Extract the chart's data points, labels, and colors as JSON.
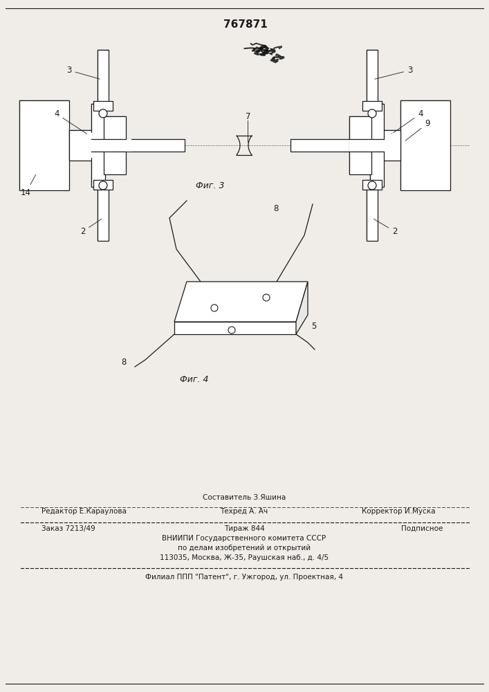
{
  "patent_number": "767871",
  "fig3_label": "Фиг. 3",
  "fig4_label": "Фиг. 4",
  "bg_color": "#f0ede8",
  "line_color": "#1a1a1a",
  "labels": {
    "2_left": "2",
    "2_right": "2",
    "3_left": "3",
    "3_right": "3",
    "4_left": "4",
    "4_right": "4",
    "7": "7",
    "9": "9",
    "14": "14",
    "5": "5",
    "8_left": "8",
    "8_right": "8"
  },
  "footer": {
    "line1_center": "Составитель З.Яшина",
    "line2_left": "Редактор Е.Карауловa",
    "line2_center": "Техред А. Ач",
    "line2_right": "Корректор И.Муска",
    "line3_left": "Заказ 7213/49",
    "line3_center": "Тираж 844",
    "line3_right": "Подписное",
    "line4": "ВНИИПИ Государственного комитета СССР",
    "line5": "по делам изобретений и открытий",
    "line6": "113035, Москва, Ж-35, Раушская наб., д. 4/5",
    "line7": "Филиал ППП \"Патент\", г. Ужгород, ул. Проектная, 4"
  }
}
